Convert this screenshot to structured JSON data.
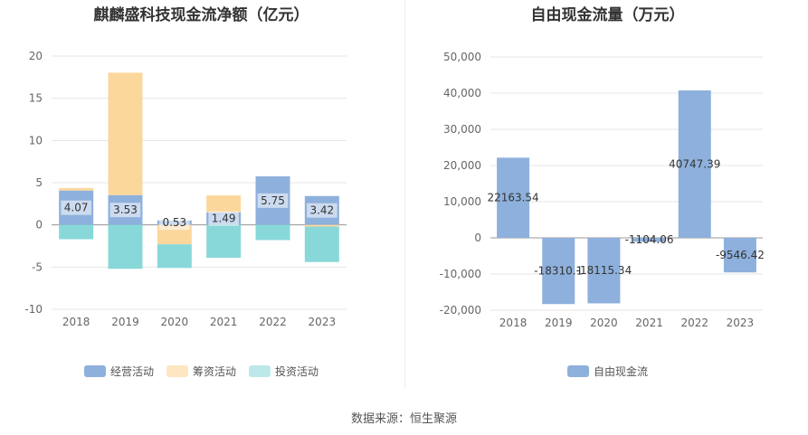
{
  "source_text": "数据来源：恒生聚源",
  "chart_data": [
    {
      "type": "bar",
      "stacked": true,
      "title": "麒麟盛科技现金流净额（亿元）",
      "categories": [
        "2018",
        "2019",
        "2020",
        "2021",
        "2022",
        "2023"
      ],
      "ylim": [
        -10,
        20
      ],
      "yticks": [
        20,
        15,
        10,
        5,
        0,
        -5,
        -10
      ],
      "grid": true,
      "legend_position": "bottom",
      "series": [
        {
          "name": "经营活动",
          "color": "#8eb0dc",
          "values": [
            4.07,
            3.53,
            0.53,
            1.49,
            5.75,
            3.42
          ],
          "labels": [
            "4.07",
            "3.53",
            "0.53",
            "1.49",
            "5.75",
            "3.42"
          ]
        },
        {
          "name": "筹资活动",
          "color": "#fcd79c",
          "values": [
            0.3,
            14.5,
            -2.3,
            2.0,
            0.0,
            -0.2
          ]
        },
        {
          "name": "投资活动",
          "color": "#88d8d9",
          "values": [
            -1.7,
            -5.2,
            -2.8,
            -3.9,
            -1.8,
            -4.2
          ]
        }
      ],
      "legend": [
        {
          "name": "经营活动",
          "color": "#8eb0dc"
        },
        {
          "name": "筹资活动",
          "color": "#fde6c1"
        },
        {
          "name": "投资活动",
          "color": "#bde8e9"
        }
      ]
    },
    {
      "type": "bar",
      "title": "自由现金流量（万元）",
      "categories": [
        "2018",
        "2019",
        "2020",
        "2021",
        "2022",
        "2023"
      ],
      "ylim": [
        -20000,
        50000
      ],
      "yticks": [
        "50,000",
        "40,000",
        "30,000",
        "20,000",
        "10,000",
        "0",
        "-10,000",
        "-20,000"
      ],
      "ytick_values": [
        50000,
        40000,
        30000,
        20000,
        10000,
        0,
        -10000,
        -20000
      ],
      "grid": true,
      "legend_position": "bottom",
      "series": [
        {
          "name": "自由现金流",
          "color": "#8eb0dc",
          "values": [
            22163.54,
            -18310.1,
            -18115.34,
            -1104.06,
            40747.39,
            -9546.42
          ],
          "labels": [
            "22163.54",
            "-18310.1",
            "-18115.34",
            "-1104.06",
            "40747.39",
            "-9546.42"
          ]
        }
      ],
      "legend": [
        {
          "name": "自由现金流",
          "color": "#8eb0dc"
        }
      ]
    }
  ]
}
